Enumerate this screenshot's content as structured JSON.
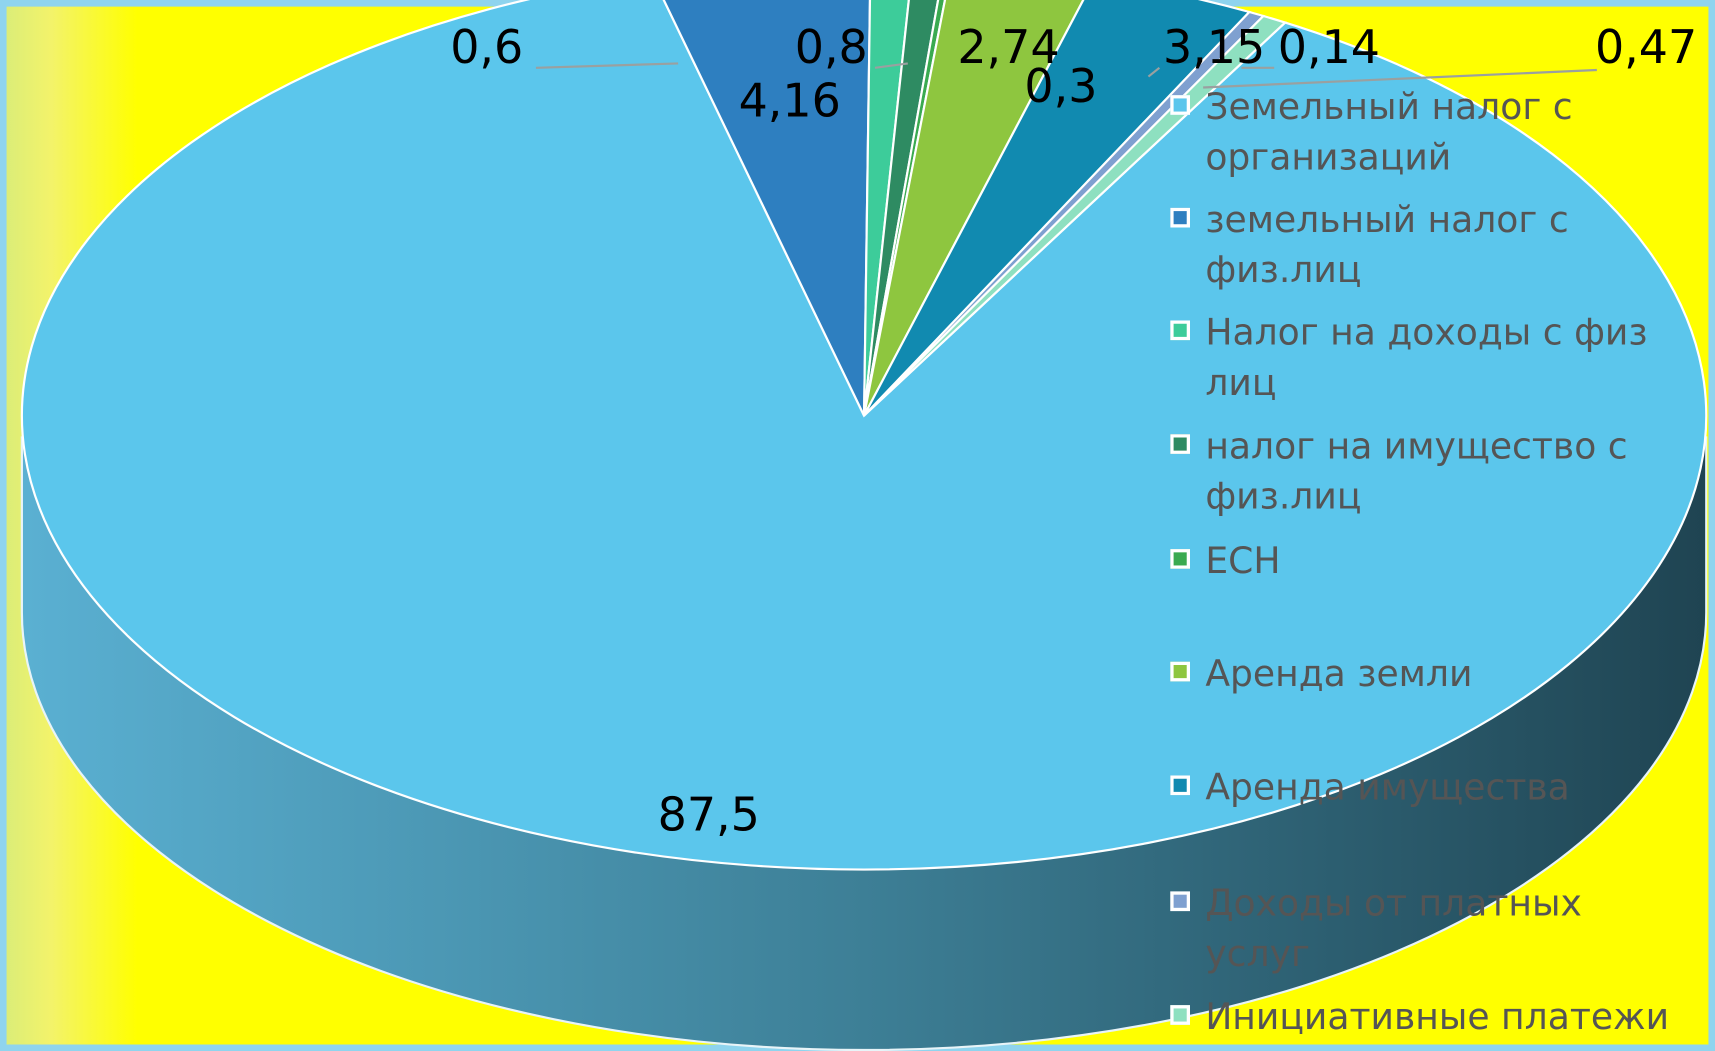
{
  "chart_data": {
    "type": "pie",
    "categories": [
      "Земельный налог с организаций",
      "земельный налог с физ.лиц",
      "Налог на доходы с физ лиц",
      "налог на имущество с физ.лиц",
      "ЕСН",
      "Аренда земли",
      "Аренда имущества",
      "Доходы от платных услуг",
      "Инициативные платежи"
    ],
    "values": [
      87.5,
      4.16,
      0.8,
      0.6,
      0.14,
      2.74,
      3.15,
      0.3,
      0.47
    ],
    "value_labels": [
      "87,5",
      "4,16",
      "0,8",
      "0,6",
      "0,14",
      "2,74",
      "3,15",
      "0,3",
      "0,47"
    ],
    "colors": [
      "#5bc6ec",
      "#2e7fc0",
      "#3dcc9a",
      "#2e8b62",
      "#3aaa50",
      "#8ec63f",
      "#118ab0",
      "#7fa0d0",
      "#8ee0c0"
    ],
    "legend": "right"
  }
}
